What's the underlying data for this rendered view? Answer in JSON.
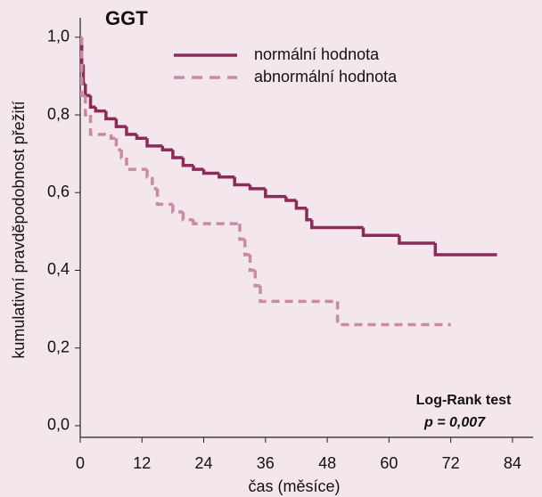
{
  "chart_data": {
    "type": "step",
    "title": "GGT",
    "xlabel": "čas (měsíce)",
    "ylabel": "kumulativní pravděpodobnost přežití",
    "annotations": [
      "Log-Rank test",
      "p = 0,007"
    ],
    "xlim": [
      0,
      88
    ],
    "ylim": [
      -0.03,
      1.05
    ],
    "xticks": [
      0,
      12,
      24,
      36,
      48,
      60,
      72,
      84
    ],
    "yticks": [
      {
        "value": 0,
        "label": "0,0"
      },
      {
        "value": 0.2,
        "label": "0,2"
      },
      {
        "value": 0.4,
        "label": "0,4"
      },
      {
        "value": 0.6,
        "label": "0,6"
      },
      {
        "value": 0.8,
        "label": "0,8"
      },
      {
        "value": 1.0,
        "label": "1,0"
      }
    ],
    "series": [
      {
        "name": "normální hodnota",
        "color": "#8c2a5a",
        "dashed": false,
        "x": [
          0,
          0.3,
          0.6,
          1,
          2,
          3,
          5,
          7,
          9,
          11,
          13,
          16,
          18,
          20,
          22,
          24,
          27,
          30,
          33,
          36,
          40,
          42,
          44,
          45,
          55,
          62,
          69,
          81
        ],
        "values": [
          1.0,
          0.93,
          0.88,
          0.85,
          0.82,
          0.81,
          0.79,
          0.77,
          0.75,
          0.74,
          0.72,
          0.71,
          0.69,
          0.67,
          0.66,
          0.65,
          0.64,
          0.62,
          0.61,
          0.59,
          0.58,
          0.56,
          0.53,
          0.51,
          0.49,
          0.47,
          0.44,
          0.44
        ]
      },
      {
        "name": "abnormální hodnota",
        "color": "#c98aa3",
        "dashed": true,
        "x": [
          0,
          0.3,
          1,
          2,
          6,
          7,
          8,
          9,
          13,
          14,
          15,
          18,
          20,
          22,
          31,
          32,
          33,
          34,
          35,
          50,
          72
        ],
        "values": [
          1.0,
          0.85,
          0.8,
          0.75,
          0.74,
          0.71,
          0.69,
          0.66,
          0.64,
          0.61,
          0.57,
          0.55,
          0.53,
          0.52,
          0.48,
          0.44,
          0.4,
          0.36,
          0.32,
          0.26,
          0.26
        ]
      }
    ]
  }
}
